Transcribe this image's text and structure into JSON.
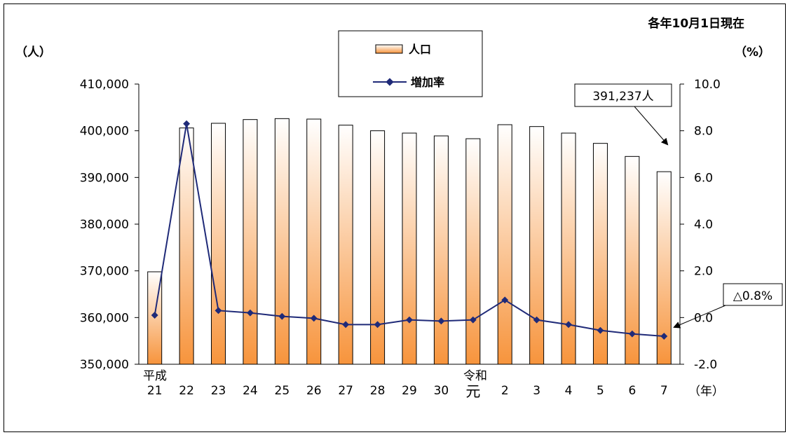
{
  "chart_data": {
    "type": "bar+line",
    "note": "各年10月1日現在",
    "ylabel_left": "（人）",
    "ylabel_right": "（%）",
    "xunit_label": "（年）",
    "era_labels": [
      "平成",
      "令和"
    ],
    "categories": [
      "21",
      "22",
      "23",
      "24",
      "25",
      "26",
      "27",
      "28",
      "29",
      "30",
      "元",
      "2",
      "3",
      "4",
      "5",
      "6",
      "7"
    ],
    "series": [
      {
        "name": "人口",
        "kind": "bar",
        "axis": "left",
        "values": [
          369800,
          400600,
          401600,
          402400,
          402600,
          402500,
          401200,
          400000,
          399500,
          398900,
          398300,
          401300,
          400900,
          399500,
          397300,
          394500,
          391237
        ]
      },
      {
        "name": "増加率",
        "kind": "line",
        "axis": "right",
        "values": [
          0.1,
          8.3,
          0.3,
          0.2,
          0.05,
          -0.03,
          -0.3,
          -0.3,
          -0.1,
          -0.15,
          -0.1,
          0.75,
          -0.1,
          -0.3,
          -0.55,
          -0.7,
          -0.8
        ]
      }
    ],
    "ylim_left": [
      350000,
      410000
    ],
    "ylim_right": [
      -2.0,
      10.0
    ],
    "ticks_left": [
      "350,000",
      "360,000",
      "370,000",
      "380,000",
      "390,000",
      "400,000",
      "410,000"
    ],
    "ticks_right": [
      "-2.0",
      "0.0",
      "2.0",
      "4.0",
      "6.0",
      "8.0",
      "10.0"
    ],
    "annotations": [
      "391,237人",
      "△0.8%"
    ],
    "colors": {
      "bar_top": "#ffffff",
      "bar_bottom": "#f7943c",
      "line": "#1f2a78",
      "frame": "#000000"
    }
  }
}
